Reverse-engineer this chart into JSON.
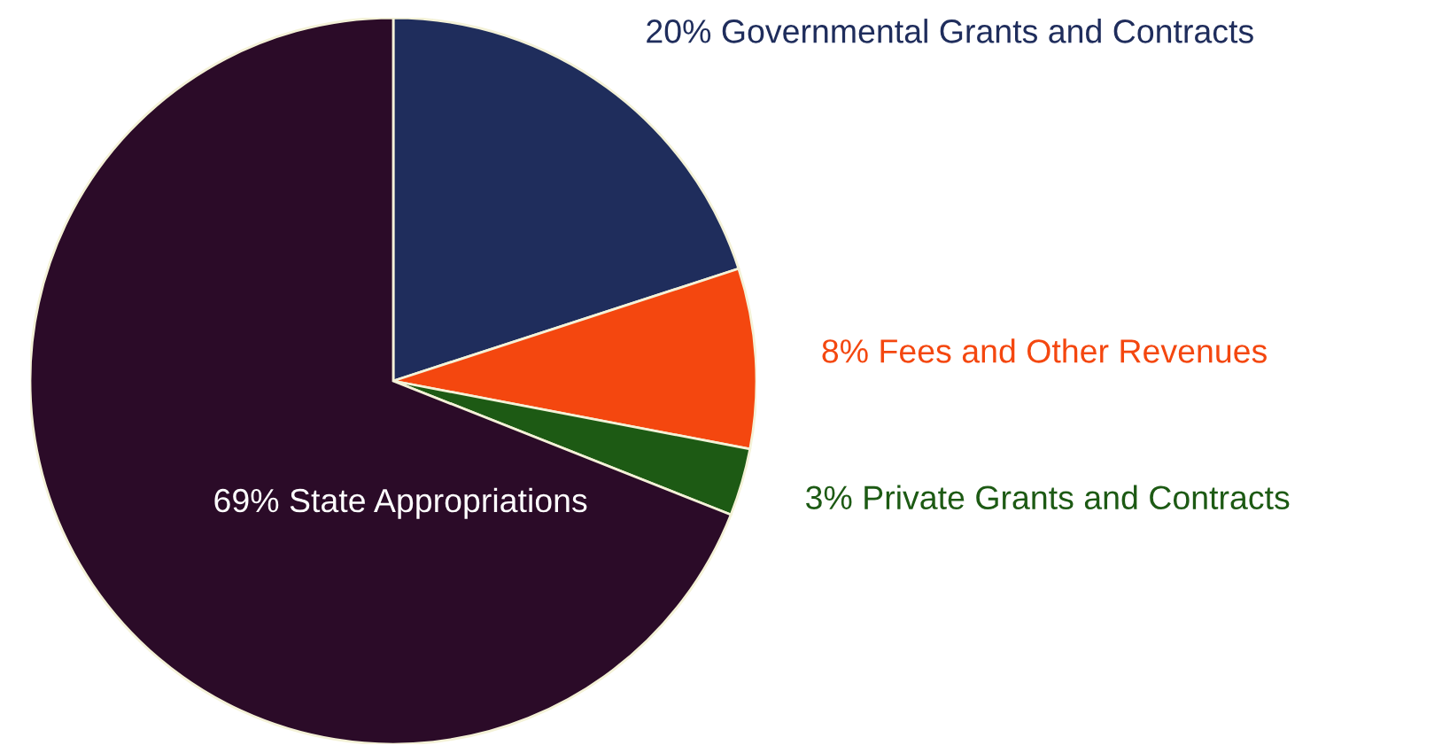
{
  "chart_data": {
    "type": "pie",
    "categories": [
      "Governmental Grants and Contracts",
      "Fees and Other Revenues",
      "Private Grants and Contracts",
      "State Appropriations"
    ],
    "values": [
      20,
      8,
      3,
      69
    ],
    "value_labels": [
      "20%",
      "8%",
      "3%",
      "69%"
    ],
    "colors": [
      "#1f2d5c",
      "#f4470f",
      "#1d5a14",
      "#2b0b28"
    ]
  }
}
